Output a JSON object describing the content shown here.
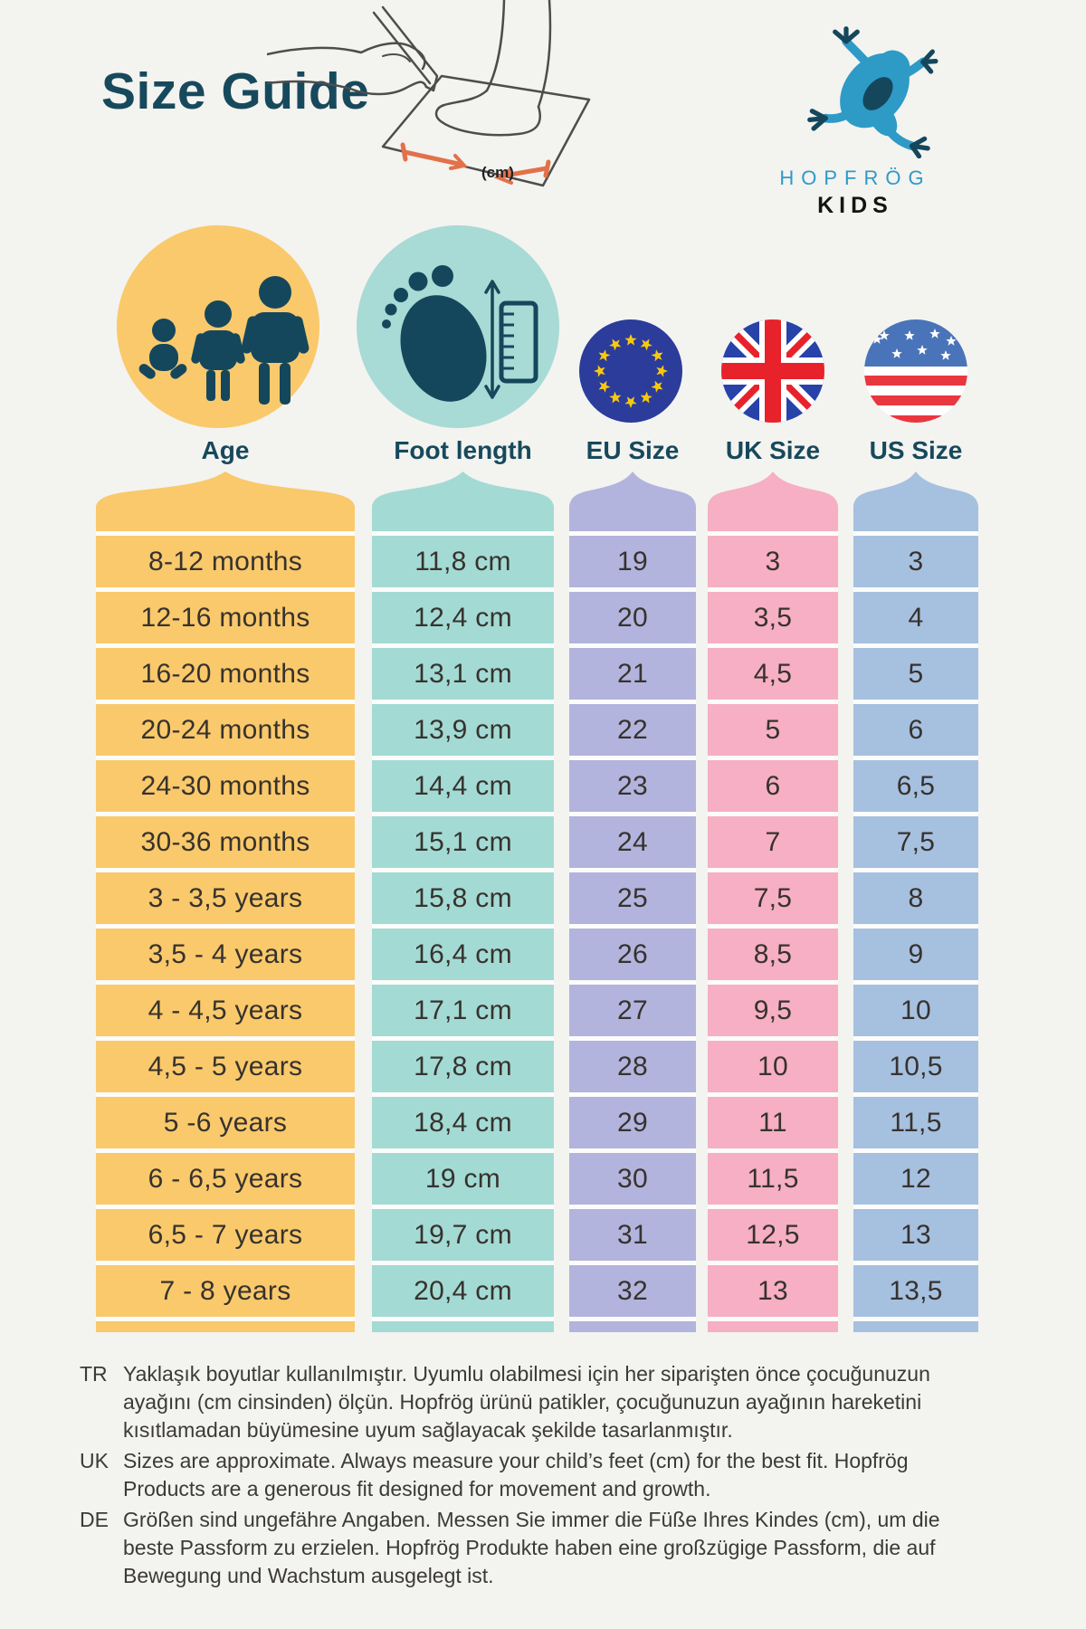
{
  "title": "Size Guide",
  "logo": {
    "brand": "HOPFRÖG",
    "sub": "KIDS"
  },
  "illustration": {
    "cm_label": "(cm)"
  },
  "columns": [
    {
      "key": "age",
      "label": "Age",
      "color": "#F9C96B"
    },
    {
      "key": "foot",
      "label": "Foot length",
      "color": "#A3DAD4"
    },
    {
      "key": "eu",
      "label": "EU Size",
      "color": "#B2B4DD"
    },
    {
      "key": "uk",
      "label": "UK Size",
      "color": "#F6AFC4"
    },
    {
      "key": "us",
      "label": "US Size",
      "color": "#A6C0E0"
    }
  ],
  "table": {
    "rows": [
      [
        "8-12 months",
        "11,8 cm",
        "19",
        "3",
        "3"
      ],
      [
        "12-16 months",
        "12,4 cm",
        "20",
        "3,5",
        "4"
      ],
      [
        "16-20 months",
        "13,1 cm",
        "21",
        "4,5",
        "5"
      ],
      [
        "20-24 months",
        "13,9 cm",
        "22",
        "5",
        "6"
      ],
      [
        "24-30 months",
        "14,4 cm",
        "23",
        "6",
        "6,5"
      ],
      [
        "30-36 months",
        "15,1 cm",
        "24",
        "7",
        "7,5"
      ],
      [
        "3 - 3,5 years",
        "15,8 cm",
        "25",
        "7,5",
        "8"
      ],
      [
        "3,5 - 4 years",
        "16,4 cm",
        "26",
        "8,5",
        "9"
      ],
      [
        "4 - 4,5 years",
        "17,1 cm",
        "27",
        "9,5",
        "10"
      ],
      [
        "4,5 - 5 years",
        "17,8 cm",
        "28",
        "10",
        "10,5"
      ],
      [
        "5 -6 years",
        "18,4 cm",
        "29",
        "11",
        "11,5"
      ],
      [
        "6 - 6,5 years",
        "19 cm",
        "30",
        "11,5",
        "12"
      ],
      [
        "6,5 - 7 years",
        "19,7 cm",
        "31",
        "12,5",
        "13"
      ],
      [
        "7 - 8 years",
        "20,4 cm",
        "32",
        "13",
        "13,5"
      ]
    ]
  },
  "notes": [
    {
      "label": "TR",
      "text": "Yaklaşık boyutlar kullanılmıştır. Uyumlu olabilmesi için her siparişten önce çocuğunuzun ayağını (cm cinsinden) ölçün. Hopfrög ürünü patikler, çocuğunuzun ayağının hareketini kısıtlamadan büyümesine uyum sağlayacak şekilde tasarlanmıştır."
    },
    {
      "label": "UK",
      "text": "Sizes are approximate. Always measure your child’s feet (cm) for the best fit. Hopfrög Products are a generous fit designed for movement and growth."
    },
    {
      "label": "DE",
      "text": "Größen sind ungefähre Angaben. Messen Sie immer die Füße Ihres Kindes (cm), um die beste Passform zu erzielen. Hopfrög Produkte haben eine großzügige Passform, die auf Bewegung und Wachstum ausgelegt ist."
    }
  ],
  "colors": {
    "background": "#F3F3F0",
    "heading": "#17495C",
    "icon_dark": "#15475C",
    "cell_text": "#37322E",
    "note_text": "#3C3A38",
    "brand_blue": "#2E9AC6",
    "arrow_orange": "#E2714A",
    "divider": "#FCFCFA"
  }
}
